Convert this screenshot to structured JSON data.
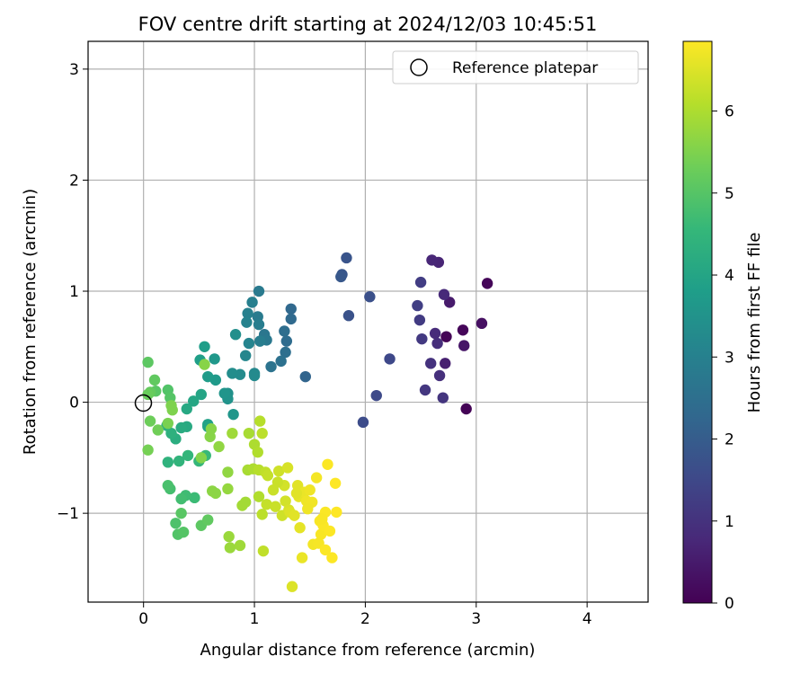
{
  "chart_data": {
    "type": "scatter",
    "title": "FOV centre drift starting at 2024/12/03 10:45:51",
    "xlabel": "Angular distance from reference (arcmin)",
    "ylabel": "Rotation from reference (arcmin)",
    "xlim": [
      -0.5,
      4.55
    ],
    "ylim": [
      -1.8,
      3.25
    ],
    "x_ticks": [
      0,
      1,
      2,
      3,
      4
    ],
    "y_ticks": [
      -1,
      0,
      1,
      2,
      3
    ],
    "x_tick_labels": [
      "0",
      "1",
      "2",
      "3",
      "4"
    ],
    "y_tick_labels": [
      "−1",
      "0",
      "1",
      "2",
      "3"
    ],
    "grid": true,
    "legend": {
      "position": "top-right",
      "entries": [
        {
          "label": "Reference platepar",
          "marker": "open-circle"
        }
      ]
    },
    "reference_point": {
      "x": 0,
      "y": 0,
      "label": "Reference platepar"
    },
    "colorbar": {
      "label": "Hours from first FF file",
      "range": [
        0,
        6.85
      ],
      "ticks": [
        0,
        1,
        2,
        3,
        4,
        5,
        6
      ],
      "tick_labels": [
        "0",
        "1",
        "2",
        "3",
        "4",
        "5",
        "6"
      ],
      "colormap": [
        "#440154",
        "#482878",
        "#3e4989",
        "#31688e",
        "#26828e",
        "#1f9e89",
        "#35b779",
        "#6ece58",
        "#b5de2b",
        "#fde725"
      ]
    },
    "points": [
      {
        "x": 2.73,
        "y": 0.59,
        "t": 0.05
      },
      {
        "x": 2.91,
        "y": -0.06,
        "t": 0.05
      },
      {
        "x": 3.1,
        "y": 1.07,
        "t": 0.08
      },
      {
        "x": 2.88,
        "y": 0.65,
        "t": 0.1
      },
      {
        "x": 3.05,
        "y": 0.71,
        "t": 0.3
      },
      {
        "x": 2.89,
        "y": 0.51,
        "t": 0.4
      },
      {
        "x": 2.76,
        "y": 0.9,
        "t": 0.5
      },
      {
        "x": 2.72,
        "y": 0.35,
        "t": 0.6
      },
      {
        "x": 2.66,
        "y": 1.26,
        "t": 0.7
      },
      {
        "x": 2.6,
        "y": 1.28,
        "t": 0.75
      },
      {
        "x": 2.71,
        "y": 0.97,
        "t": 0.8
      },
      {
        "x": 2.63,
        "y": 0.62,
        "t": 0.85
      },
      {
        "x": 2.65,
        "y": 0.53,
        "t": 0.9
      },
      {
        "x": 2.67,
        "y": 0.24,
        "t": 0.95
      },
      {
        "x": 2.59,
        "y": 0.35,
        "t": 1.0
      },
      {
        "x": 2.7,
        "y": 0.04,
        "t": 1.05
      },
      {
        "x": 2.54,
        "y": 0.11,
        "t": 1.1
      },
      {
        "x": 2.51,
        "y": 0.57,
        "t": 1.15
      },
      {
        "x": 2.49,
        "y": 0.74,
        "t": 1.2
      },
      {
        "x": 2.5,
        "y": 1.08,
        "t": 1.25
      },
      {
        "x": 2.47,
        "y": 0.87,
        "t": 1.3
      },
      {
        "x": 2.22,
        "y": 0.39,
        "t": 1.5
      },
      {
        "x": 2.1,
        "y": 0.06,
        "t": 1.55
      },
      {
        "x": 1.98,
        "y": -0.18,
        "t": 1.6
      },
      {
        "x": 2.04,
        "y": 0.95,
        "t": 1.7
      },
      {
        "x": 1.85,
        "y": 0.78,
        "t": 1.75
      },
      {
        "x": 1.83,
        "y": 1.3,
        "t": 1.8
      },
      {
        "x": 1.79,
        "y": 1.15,
        "t": 1.85
      },
      {
        "x": 1.78,
        "y": 1.13,
        "t": 1.9
      },
      {
        "x": 1.46,
        "y": 0.23,
        "t": 2.2
      },
      {
        "x": 1.33,
        "y": 0.84,
        "t": 2.3
      },
      {
        "x": 1.33,
        "y": 0.75,
        "t": 2.35
      },
      {
        "x": 1.29,
        "y": 0.55,
        "t": 2.4
      },
      {
        "x": 1.27,
        "y": 0.64,
        "t": 2.45
      },
      {
        "x": 1.28,
        "y": 0.45,
        "t": 2.5
      },
      {
        "x": 1.24,
        "y": 0.37,
        "t": 2.55
      },
      {
        "x": 1.15,
        "y": 0.32,
        "t": 2.6
      },
      {
        "x": 1.09,
        "y": 0.61,
        "t": 2.7
      },
      {
        "x": 1.11,
        "y": 0.56,
        "t": 2.75
      },
      {
        "x": 1.04,
        "y": 1.0,
        "t": 2.8
      },
      {
        "x": 1.03,
        "y": 0.77,
        "t": 2.85
      },
      {
        "x": 1.04,
        "y": 0.7,
        "t": 2.9
      },
      {
        "x": 1.05,
        "y": 0.55,
        "t": 2.9
      },
      {
        "x": 0.98,
        "y": 0.9,
        "t": 2.95
      },
      {
        "x": 0.94,
        "y": 0.8,
        "t": 3.0
      },
      {
        "x": 0.93,
        "y": 0.72,
        "t": 3.05
      },
      {
        "x": 0.95,
        "y": 0.53,
        "t": 3.1
      },
      {
        "x": 0.92,
        "y": 0.42,
        "t": 3.15
      },
      {
        "x": 1.0,
        "y": 0.26,
        "t": 3.2
      },
      {
        "x": 1.0,
        "y": 0.24,
        "t": 3.25
      },
      {
        "x": 0.87,
        "y": 0.25,
        "t": 3.3
      },
      {
        "x": 0.8,
        "y": 0.26,
        "t": 3.35
      },
      {
        "x": 0.83,
        "y": 0.61,
        "t": 3.4
      },
      {
        "x": 0.76,
        "y": 0.08,
        "t": 3.45
      },
      {
        "x": 0.76,
        "y": 0.03,
        "t": 3.5
      },
      {
        "x": 0.73,
        "y": 0.08,
        "t": 3.55
      },
      {
        "x": 0.81,
        "y": -0.11,
        "t": 3.6
      },
      {
        "x": 0.64,
        "y": 0.39,
        "t": 3.65
      },
      {
        "x": 0.65,
        "y": 0.2,
        "t": 3.7
      },
      {
        "x": 0.58,
        "y": 0.23,
        "t": 3.75
      },
      {
        "x": 0.55,
        "y": 0.5,
        "t": 3.8
      },
      {
        "x": 0.51,
        "y": 0.38,
        "t": 3.85
      },
      {
        "x": 0.58,
        "y": -0.2,
        "t": 3.9
      },
      {
        "x": 0.58,
        "y": -0.22,
        "t": 3.95
      },
      {
        "x": 0.52,
        "y": 0.07,
        "t": 4.0
      },
      {
        "x": 0.45,
        "y": 0.01,
        "t": 4.05
      },
      {
        "x": 0.39,
        "y": -0.06,
        "t": 4.1
      },
      {
        "x": 0.39,
        "y": -0.22,
        "t": 4.15
      },
      {
        "x": 0.34,
        "y": -0.23,
        "t": 4.2
      },
      {
        "x": 0.29,
        "y": -0.33,
        "t": 4.25
      },
      {
        "x": 0.21,
        "y": -0.21,
        "t": 4.3
      },
      {
        "x": 0.25,
        "y": -0.28,
        "t": 4.35
      },
      {
        "x": 0.22,
        "y": -0.54,
        "t": 4.4
      },
      {
        "x": 0.32,
        "y": -0.53,
        "t": 4.45
      },
      {
        "x": 0.4,
        "y": -0.48,
        "t": 4.5
      },
      {
        "x": 0.5,
        "y": -0.53,
        "t": 4.55
      },
      {
        "x": 0.56,
        "y": -0.48,
        "t": 4.6
      },
      {
        "x": 0.46,
        "y": -0.86,
        "t": 4.65
      },
      {
        "x": 0.38,
        "y": -0.84,
        "t": 4.7
      },
      {
        "x": 0.34,
        "y": -0.87,
        "t": 4.75
      },
      {
        "x": 0.24,
        "y": -0.78,
        "t": 4.8
      },
      {
        "x": 0.22,
        "y": -0.75,
        "t": 4.85
      },
      {
        "x": 0.29,
        "y": -1.09,
        "t": 4.9
      },
      {
        "x": 0.31,
        "y": -1.19,
        "t": 4.95
      },
      {
        "x": 0.36,
        "y": -1.17,
        "t": 5.0
      },
      {
        "x": 0.34,
        "y": -1.0,
        "t": 5.05
      },
      {
        "x": 0.52,
        "y": -1.11,
        "t": 5.1
      },
      {
        "x": 0.58,
        "y": -1.06,
        "t": 5.15
      },
      {
        "x": 0.22,
        "y": 0.11,
        "t": 4.95
      },
      {
        "x": 0.24,
        "y": 0.04,
        "t": 5.0
      },
      {
        "x": 0.11,
        "y": 0.1,
        "t": 5.05
      },
      {
        "x": 0.04,
        "y": 0.36,
        "t": 5.1
      },
      {
        "x": 0.1,
        "y": 0.2,
        "t": 5.15
      },
      {
        "x": 0.06,
        "y": 0.09,
        "t": 5.2
      },
      {
        "x": 0.04,
        "y": 0.07,
        "t": 5.25
      },
      {
        "x": 0.06,
        "y": -0.17,
        "t": 5.3
      },
      {
        "x": 0.13,
        "y": -0.25,
        "t": 5.35
      },
      {
        "x": 0.04,
        "y": -0.43,
        "t": 5.4
      },
      {
        "x": 0.22,
        "y": -0.19,
        "t": 5.45
      },
      {
        "x": 0.25,
        "y": -0.03,
        "t": 5.5
      },
      {
        "x": 0.26,
        "y": -0.07,
        "t": 5.5
      },
      {
        "x": 0.52,
        "y": -0.5,
        "t": 5.55
      },
      {
        "x": 0.55,
        "y": 0.34,
        "t": 5.6
      },
      {
        "x": 0.6,
        "y": -0.31,
        "t": 5.6
      },
      {
        "x": 0.62,
        "y": -0.8,
        "t": 5.65
      },
      {
        "x": 0.68,
        "y": -0.4,
        "t": 5.7
      },
      {
        "x": 0.76,
        "y": -0.63,
        "t": 5.7
      },
      {
        "x": 0.76,
        "y": -0.78,
        "t": 5.75
      },
      {
        "x": 0.77,
        "y": -1.21,
        "t": 5.8
      },
      {
        "x": 0.78,
        "y": -1.31,
        "t": 5.8
      },
      {
        "x": 0.8,
        "y": -0.28,
        "t": 5.85
      },
      {
        "x": 0.87,
        "y": -1.29,
        "t": 5.85
      },
      {
        "x": 0.89,
        "y": -0.93,
        "t": 5.9
      },
      {
        "x": 0.92,
        "y": -0.9,
        "t": 5.9
      },
      {
        "x": 0.94,
        "y": -0.61,
        "t": 5.95
      },
      {
        "x": 0.95,
        "y": -0.28,
        "t": 5.95
      },
      {
        "x": 0.99,
        "y": -0.6,
        "t": 6.0
      },
      {
        "x": 1.0,
        "y": -0.38,
        "t": 6.0
      },
      {
        "x": 1.03,
        "y": -0.45,
        "t": 6.05
      },
      {
        "x": 1.04,
        "y": -0.85,
        "t": 6.05
      },
      {
        "x": 1.04,
        "y": -0.61,
        "t": 6.1
      },
      {
        "x": 1.05,
        "y": -0.17,
        "t": 6.1
      },
      {
        "x": 1.07,
        "y": -0.28,
        "t": 6.15
      },
      {
        "x": 1.07,
        "y": -1.01,
        "t": 6.15
      },
      {
        "x": 1.08,
        "y": -1.34,
        "t": 6.2
      },
      {
        "x": 1.1,
        "y": -0.63,
        "t": 6.2
      },
      {
        "x": 1.11,
        "y": -0.92,
        "t": 6.25
      },
      {
        "x": 1.12,
        "y": -0.66,
        "t": 6.25
      },
      {
        "x": 1.17,
        "y": -0.79,
        "t": 6.3
      },
      {
        "x": 1.19,
        "y": -0.94,
        "t": 6.3
      },
      {
        "x": 1.22,
        "y": -0.62,
        "t": 6.35
      },
      {
        "x": 1.25,
        "y": -1.02,
        "t": 6.35
      },
      {
        "x": 1.27,
        "y": -0.75,
        "t": 6.4
      },
      {
        "x": 1.28,
        "y": -0.89,
        "t": 6.4
      },
      {
        "x": 1.3,
        "y": -0.59,
        "t": 6.45
      },
      {
        "x": 1.31,
        "y": -0.97,
        "t": 6.45
      },
      {
        "x": 1.32,
        "y": -0.99,
        "t": 6.5
      },
      {
        "x": 1.34,
        "y": -1.66,
        "t": 6.5
      },
      {
        "x": 1.36,
        "y": -1.02,
        "t": 6.55
      },
      {
        "x": 1.39,
        "y": -0.75,
        "t": 6.55
      },
      {
        "x": 1.4,
        "y": -0.85,
        "t": 6.6
      },
      {
        "x": 1.41,
        "y": -1.13,
        "t": 6.6
      },
      {
        "x": 1.43,
        "y": -1.4,
        "t": 6.65
      },
      {
        "x": 1.45,
        "y": -0.81,
        "t": 6.65
      },
      {
        "x": 1.47,
        "y": -0.89,
        "t": 6.7
      },
      {
        "x": 1.5,
        "y": -0.79,
        "t": 6.7
      },
      {
        "x": 1.52,
        "y": -0.9,
        "t": 6.72
      },
      {
        "x": 1.53,
        "y": -1.28,
        "t": 6.74
      },
      {
        "x": 1.56,
        "y": -0.68,
        "t": 6.76
      },
      {
        "x": 1.58,
        "y": -1.27,
        "t": 6.78
      },
      {
        "x": 1.59,
        "y": -1.07,
        "t": 6.8
      },
      {
        "x": 1.6,
        "y": -1.19,
        "t": 6.8
      },
      {
        "x": 1.62,
        "y": -1.11,
        "t": 6.82
      },
      {
        "x": 1.64,
        "y": -0.99,
        "t": 6.82
      },
      {
        "x": 1.64,
        "y": -1.33,
        "t": 6.83
      },
      {
        "x": 1.66,
        "y": -0.56,
        "t": 6.83
      },
      {
        "x": 1.68,
        "y": -1.16,
        "t": 6.84
      },
      {
        "x": 1.7,
        "y": -1.4,
        "t": 6.84
      },
      {
        "x": 1.73,
        "y": -0.73,
        "t": 6.85
      },
      {
        "x": 1.74,
        "y": -0.99,
        "t": 6.85
      },
      {
        "x": 1.61,
        "y": -1.05,
        "t": 6.8
      },
      {
        "x": 1.48,
        "y": -0.96,
        "t": 6.7
      },
      {
        "x": 1.38,
        "y": -0.82,
        "t": 6.55
      },
      {
        "x": 1.21,
        "y": -0.72,
        "t": 6.3
      },
      {
        "x": 0.61,
        "y": -0.24,
        "t": 5.6
      },
      {
        "x": 0.65,
        "y": -0.82,
        "t": 5.65
      }
    ]
  }
}
